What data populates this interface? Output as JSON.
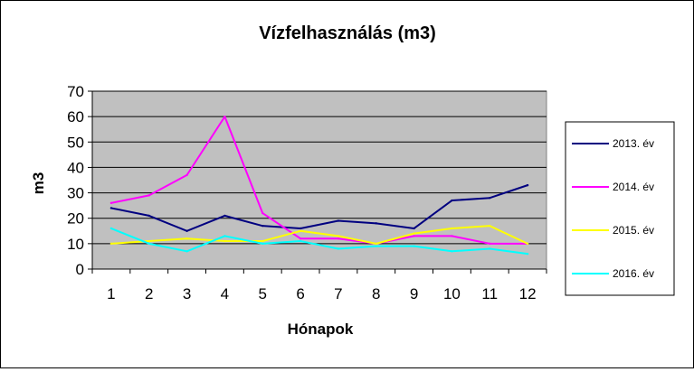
{
  "chart_data": {
    "type": "line",
    "title": "Vízfelhasználás (m3)",
    "xlabel": "Hónapok",
    "ylabel": "m3",
    "ylim": [
      0,
      70
    ],
    "yticks": [
      0,
      10,
      20,
      30,
      40,
      50,
      60,
      70
    ],
    "categories": [
      "1",
      "2",
      "3",
      "4",
      "5",
      "6",
      "7",
      "8",
      "9",
      "10",
      "11",
      "12"
    ],
    "grid": true,
    "legend_position": "right",
    "plot_background": "#c0c0c0",
    "series": [
      {
        "name": "2013. év",
        "color": "#000080",
        "values": [
          24,
          21,
          15,
          21,
          17,
          16,
          19,
          18,
          16,
          27,
          28,
          33
        ]
      },
      {
        "name": "2014. év",
        "color": "#ff00ff",
        "values": [
          26,
          29,
          37,
          60,
          22,
          12,
          12,
          10,
          13,
          13,
          10,
          10
        ]
      },
      {
        "name": "2015. év",
        "color": "#ffff00",
        "values": [
          10,
          11,
          12,
          11,
          11,
          15,
          13,
          10,
          14,
          16,
          17,
          10
        ]
      },
      {
        "name": "2016. év",
        "color": "#00ffff",
        "values": [
          16,
          10,
          7,
          13,
          10,
          11,
          8,
          9,
          9,
          7,
          8,
          6
        ]
      }
    ]
  }
}
